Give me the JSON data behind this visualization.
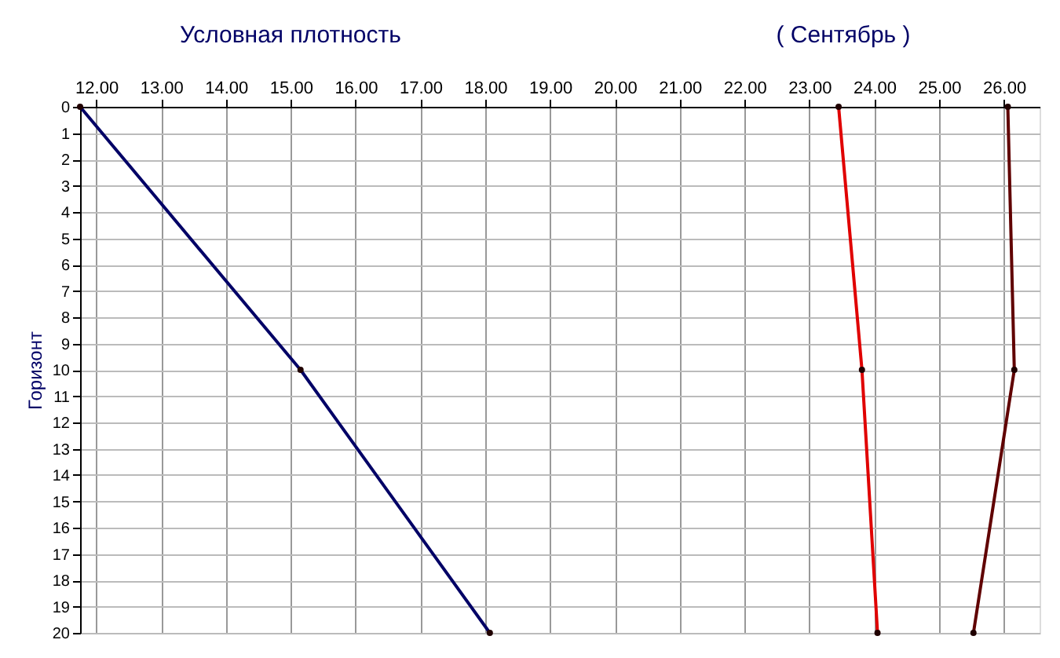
{
  "chart_data": {
    "type": "line",
    "title": "Условная плотность",
    "annotations": [
      "( Сентябрь )"
    ],
    "ylabel": "Горизонт",
    "xlim": [
      11.75,
      26.55
    ],
    "xticks": [
      {
        "value": 12,
        "label": "12.00"
      },
      {
        "value": 13,
        "label": "13.00"
      },
      {
        "value": 14,
        "label": "14.00"
      },
      {
        "value": 15,
        "label": "15.00"
      },
      {
        "value": 16,
        "label": "16.00"
      },
      {
        "value": 17,
        "label": "17.00"
      },
      {
        "value": 18,
        "label": "18.00"
      },
      {
        "value": 19,
        "label": "19.00"
      },
      {
        "value": 20,
        "label": "20.00"
      },
      {
        "value": 21,
        "label": "21.00"
      },
      {
        "value": 22,
        "label": "22.00"
      },
      {
        "value": 23,
        "label": "23.00"
      },
      {
        "value": 24,
        "label": "24.00"
      },
      {
        "value": 25,
        "label": "25.00"
      },
      {
        "value": 26,
        "label": "26.00"
      }
    ],
    "ylim": [
      20,
      0
    ],
    "yticks": [
      0,
      1,
      2,
      3,
      4,
      5,
      6,
      7,
      8,
      9,
      10,
      11,
      12,
      13,
      14,
      15,
      16,
      17,
      18,
      19,
      20
    ],
    "grid": true,
    "marker": "circle",
    "line_style": "solid",
    "series": [
      {
        "color": "#000066",
        "x": [
          11.75,
          15.15,
          18.07
        ],
        "values": [
          0,
          10,
          20
        ]
      },
      {
        "color": "#e00000",
        "x": [
          23.45,
          23.81,
          24.05
        ],
        "values": [
          0,
          10,
          20
        ]
      },
      {
        "color": "#600000",
        "x": [
          26.06,
          26.16,
          25.53
        ],
        "values": [
          0,
          10,
          20
        ]
      }
    ]
  }
}
